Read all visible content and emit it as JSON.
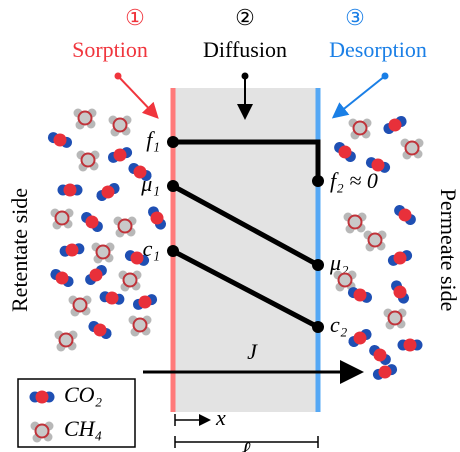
{
  "steps": [
    {
      "number": "①",
      "label": "Sorption"
    },
    {
      "number": "②",
      "label": "Diffusion"
    },
    {
      "number": "③",
      "label": "Desorption"
    }
  ],
  "left_labels": [
    "f₁",
    "μ₁",
    "c₁"
  ],
  "right_labels": [
    "f₂ ≈ 0",
    "μ₂",
    "c₂"
  ],
  "flux": "J",
  "position": "x",
  "thickness": "ℓ",
  "sides": {
    "left": "Retentate side",
    "right": "Permeate side"
  },
  "legend": [
    "CO₂",
    "CH₄"
  ]
}
